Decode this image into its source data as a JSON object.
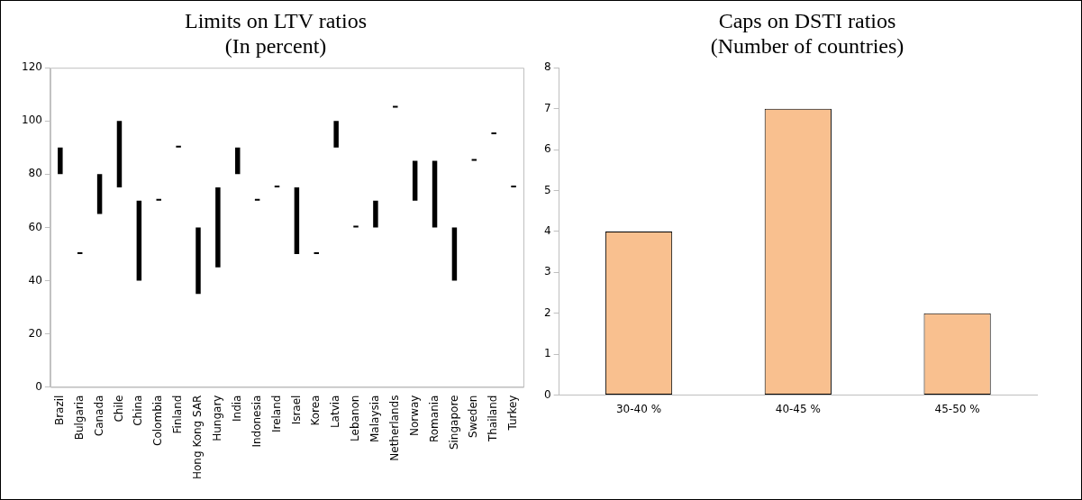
{
  "chart_data": [
    {
      "type": "bar",
      "title": "Limits on LTV ratios\n(In percent)",
      "categories": [
        "Brazil",
        "Bulgaria",
        "Canada",
        "Chile",
        "China",
        "Colombia",
        "Finland",
        "Hong Kong SAR",
        "Hungary",
        "India",
        "Indonesia",
        "Ireland",
        "Israel",
        "Korea",
        "Latvia",
        "Lebanon",
        "Malaysia",
        "Netherlands",
        "Norway",
        "Romania",
        "Singapore",
        "Sweden",
        "Thailand",
        "Turkey"
      ],
      "base": [
        80,
        50,
        65,
        75,
        40,
        70,
        90,
        35,
        45,
        80,
        70,
        75,
        50,
        50,
        90,
        60,
        60,
        105,
        70,
        60,
        40,
        85,
        95,
        75
      ],
      "values": [
        10,
        0,
        15,
        25,
        30,
        0,
        0,
        25,
        30,
        10,
        0,
        0,
        25,
        0,
        10,
        0,
        10,
        0,
        15,
        25,
        20,
        0,
        0,
        0
      ],
      "color": "#000000",
      "ylim": [
        0,
        120
      ],
      "yticks": [
        0,
        20,
        40,
        60,
        80,
        100,
        120
      ]
    },
    {
      "type": "bar",
      "title": "Caps on DSTI ratios\n(Number of countries)",
      "categories": [
        "30-40 %",
        "40-45 %",
        "45-50 %"
      ],
      "values": [
        4,
        7,
        2
      ],
      "color": "#f9c08f",
      "ylim": [
        0,
        8
      ],
      "yticks": [
        0,
        1,
        2,
        3,
        4,
        5,
        6,
        7,
        8
      ]
    }
  ]
}
